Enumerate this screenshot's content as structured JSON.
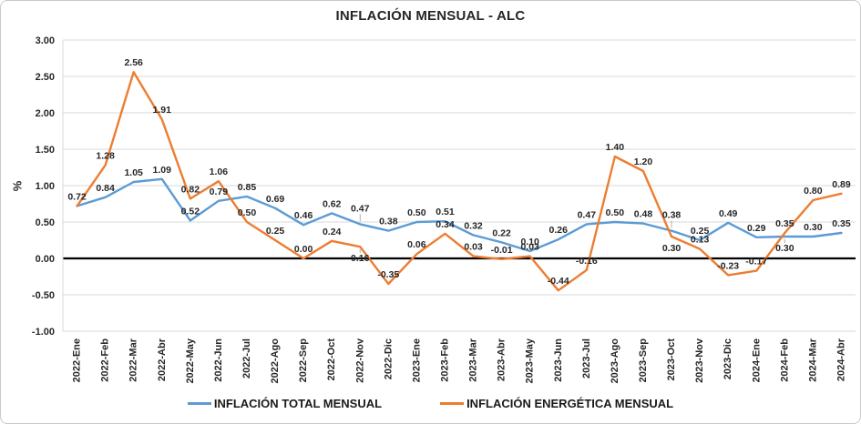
{
  "chart_data": {
    "type": "line",
    "title": "INFLACIÓN MENSUAL - ALC",
    "xlabel": "",
    "ylabel": "%",
    "ylim": [
      -1.0,
      3.0
    ],
    "yticks": [
      3.0,
      2.5,
      2.0,
      1.5,
      1.0,
      0.5,
      0.0,
      -0.5,
      -1.0
    ],
    "grid": true,
    "legend_position": "bottom",
    "gridline_color": "#d9d9d9",
    "zero_line_color": "#000000",
    "categories": [
      "2022-Ene",
      "2022-Feb",
      "2022-Mar",
      "2022-Abr",
      "2022-May",
      "2022-Jun",
      "2022-Jul",
      "2022-Ago",
      "2022-Sep",
      "2022-Oct",
      "2022-Nov",
      "2022-Dic",
      "2023-Ene",
      "2023-Feb",
      "2023-Mar",
      "2023-Abr",
      "2023-May",
      "2023-Jun",
      "2023-Jul",
      "2023-Ago",
      "2023-Sep",
      "2023-Oct",
      "2023-Nov",
      "2023-Dic",
      "2024-Ene",
      "2024-Feb",
      "2024-Mar",
      "2024-Abr"
    ],
    "series": [
      {
        "name": "INFLACIÓN TOTAL MENSUAL",
        "color": "#5B9BD5",
        "label_color": "#1F4E79",
        "values": [
          0.72,
          0.84,
          1.05,
          1.09,
          0.52,
          0.79,
          0.85,
          0.69,
          0.46,
          0.62,
          0.47,
          0.38,
          0.5,
          0.51,
          0.32,
          0.22,
          0.1,
          0.26,
          0.47,
          0.5,
          0.48,
          0.38,
          0.25,
          0.49,
          0.29,
          0.3,
          0.3,
          0.35
        ],
        "label_hidden_indices": [
          0
        ],
        "label_below_indices": [
          25
        ],
        "leader_indices": [
          10,
          21,
          25
        ]
      },
      {
        "name": "INFLACIÓN ENERGÉTICA MENSUAL",
        "color": "#ED7D31",
        "label_color": "#843C0C",
        "values": [
          0.72,
          1.28,
          2.56,
          1.91,
          0.82,
          1.06,
          0.5,
          0.25,
          0.0,
          0.24,
          0.16,
          -0.35,
          0.06,
          0.34,
          0.03,
          -0.01,
          0.03,
          -0.44,
          -0.16,
          1.4,
          1.2,
          0.3,
          0.13,
          -0.23,
          -0.17,
          0.35,
          0.8,
          0.89
        ],
        "label_hidden_indices": [],
        "label_below_indices": [
          10,
          21
        ],
        "leader_indices": [
          10
        ]
      }
    ]
  }
}
